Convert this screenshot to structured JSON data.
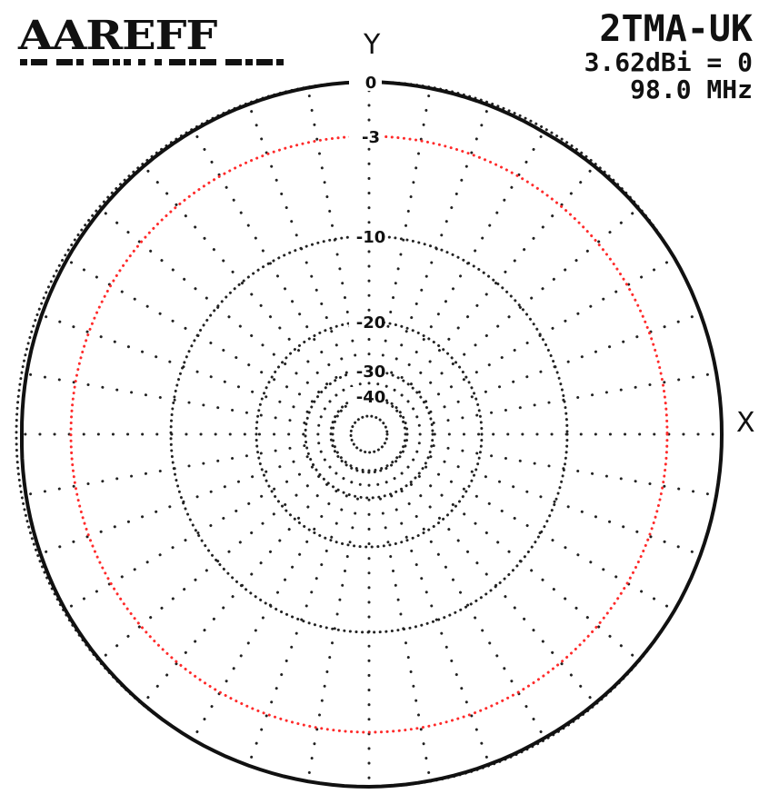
{
  "chart_data": {
    "type": "polar",
    "logo": "AAREFF",
    "title": "2TMA-UK",
    "gain_reference": "3.62dBi = 0",
    "frequency": "98.0 MHz",
    "axis_labels": {
      "y": "Y",
      "x": "X"
    },
    "radial_scale": "dB",
    "ring_values": [
      0,
      -3,
      -10,
      -20,
      -30,
      -40
    ],
    "ring_labels": [
      "0",
      "-3",
      "-10",
      "-20",
      "-30",
      "-40"
    ],
    "reference_ring_value": -3,
    "spoke_step_deg": 10,
    "pattern": {
      "angles_deg": [
        0,
        30,
        60,
        90,
        120,
        150,
        180,
        210,
        240,
        270,
        300,
        330
      ],
      "gain_db": [
        0,
        -0.2,
        0,
        0,
        0,
        -0.1,
        0,
        0,
        -0.1,
        -0.3,
        -0.2,
        -0.1
      ]
    },
    "colors": {
      "grid": "#222222",
      "reference_ring": "#ff2a2a",
      "pattern": "#111111"
    }
  }
}
